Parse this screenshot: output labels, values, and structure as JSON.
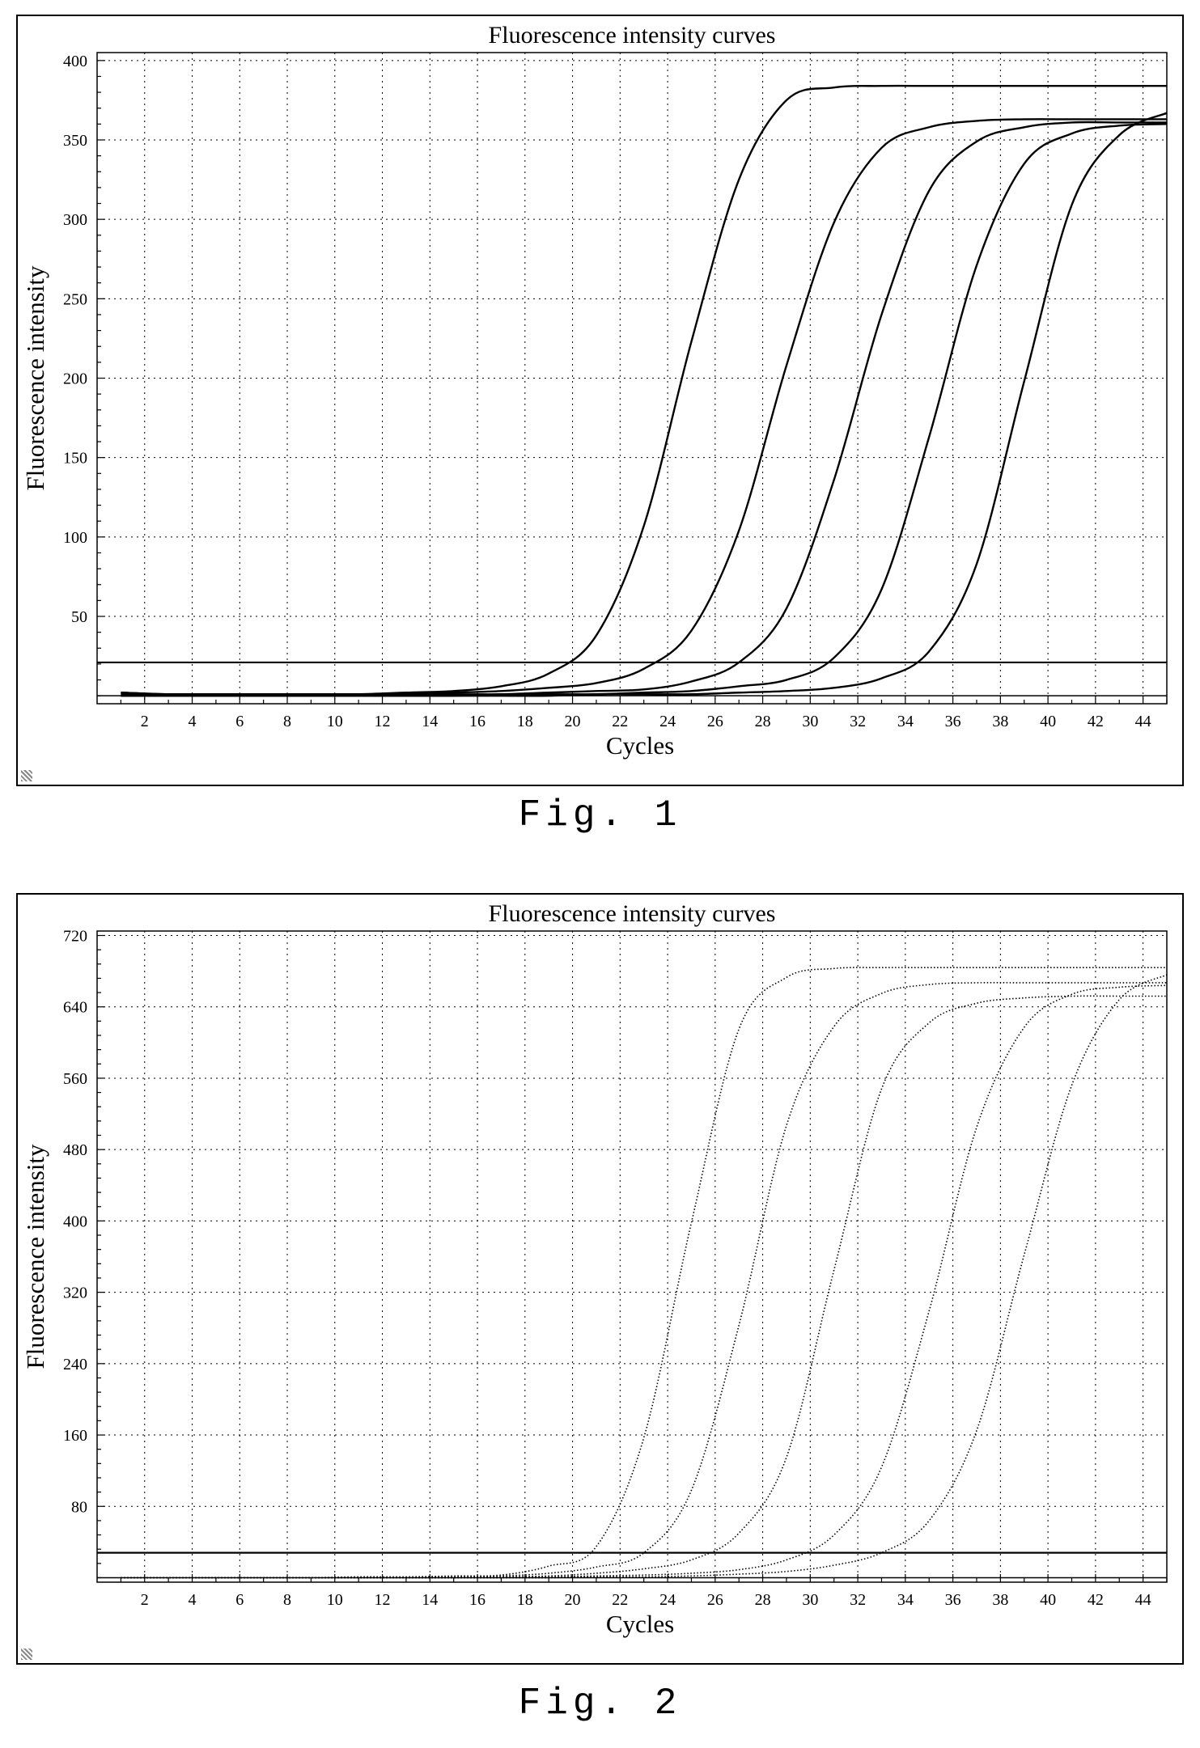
{
  "captions": {
    "fig1": "Fig. 1",
    "fig2": "Fig. 2"
  },
  "chart_data": [
    {
      "type": "line",
      "title": "Fluorescence intensity curves",
      "xlabel": "Cycles",
      "ylabel": "Fluorescence intensity",
      "xlim": [
        0,
        45
      ],
      "ylim": [
        -5,
        405
      ],
      "xticks": [
        2,
        4,
        6,
        8,
        10,
        12,
        14,
        16,
        18,
        20,
        22,
        24,
        26,
        28,
        30,
        32,
        34,
        36,
        38,
        40,
        42,
        44
      ],
      "yticks": [
        50,
        100,
        150,
        200,
        250,
        300,
        350,
        400
      ],
      "grid": true,
      "line_style": "solid",
      "threshold": 21,
      "x": [
        1,
        3,
        5,
        7,
        9,
        11,
        13,
        15,
        17,
        19,
        21,
        23,
        25,
        27,
        29,
        31,
        33,
        35,
        37,
        39,
        41,
        43,
        45
      ],
      "series": [
        {
          "values": [
            2,
            1,
            1,
            1,
            1,
            1,
            2,
            3,
            6,
            14,
            38,
            107,
            223,
            325,
            375,
            383,
            384,
            384,
            384,
            384,
            384,
            384,
            384
          ]
        },
        {
          "values": [
            2,
            1,
            1,
            1,
            1,
            1,
            1,
            2,
            3,
            5,
            8,
            17,
            41,
            104,
            208,
            298,
            345,
            358,
            362,
            363,
            363,
            363,
            363
          ]
        },
        {
          "values": [
            1,
            1,
            1,
            1,
            1,
            1,
            1,
            1,
            1,
            2,
            3,
            4,
            9,
            21,
            55,
            136,
            240,
            318,
            349,
            358,
            361,
            361,
            361
          ]
        },
        {
          "values": [
            0,
            0,
            0,
            0,
            0,
            0,
            0,
            0,
            1,
            1,
            1,
            2,
            3,
            6,
            10,
            24,
            67,
            163,
            271,
            335,
            354,
            359,
            360
          ]
        },
        {
          "values": [
            0,
            0,
            0,
            0,
            0,
            0,
            0,
            0,
            0,
            0,
            1,
            1,
            1,
            2,
            3,
            5,
            11,
            28,
            83,
            198,
            309,
            353,
            367
          ]
        }
      ]
    },
    {
      "type": "line",
      "title": "Fluorescence intensity curves",
      "xlabel": "Cycles",
      "ylabel": "Fluorescence intensity",
      "xlim": [
        0,
        45
      ],
      "ylim": [
        -5,
        725
      ],
      "xticks": [
        2,
        4,
        6,
        8,
        10,
        12,
        14,
        16,
        18,
        20,
        22,
        24,
        26,
        28,
        30,
        32,
        34,
        36,
        38,
        40,
        42,
        44
      ],
      "yticks": [
        80,
        160,
        240,
        320,
        400,
        480,
        560,
        640,
        720
      ],
      "grid": true,
      "line_style": "dotted",
      "threshold": 28,
      "x": [
        1,
        3,
        5,
        7,
        9,
        11,
        13,
        15,
        17,
        19,
        21,
        23,
        25,
        27,
        29,
        31,
        33,
        35,
        37,
        39,
        41,
        43,
        45
      ],
      "series": [
        {
          "values": [
            0,
            0,
            0,
            0,
            0,
            1,
            1,
            2,
            3,
            13,
            35,
            157,
            398,
            615,
            673,
            683,
            684,
            684,
            684,
            684,
            684,
            684,
            684
          ]
        },
        {
          "values": [
            0,
            0,
            0,
            0,
            0,
            0,
            0,
            1,
            2,
            5,
            12,
            28,
            98,
            283,
            507,
            618,
            655,
            665,
            667,
            667,
            667,
            667,
            667
          ]
        },
        {
          "values": [
            0,
            0,
            0,
            0,
            0,
            0,
            0,
            0,
            1,
            2,
            5,
            10,
            20,
            50,
            135,
            345,
            548,
            622,
            644,
            650,
            652,
            652,
            652
          ]
        },
        {
          "values": [
            0,
            0,
            0,
            0,
            0,
            0,
            0,
            0,
            0,
            1,
            2,
            3,
            5,
            9,
            20,
            48,
            124,
            299,
            505,
            617,
            654,
            662,
            664
          ]
        },
        {
          "values": [
            0,
            0,
            0,
            0,
            0,
            0,
            0,
            0,
            0,
            0,
            1,
            1,
            2,
            4,
            7,
            14,
            28,
            64,
            165,
            362,
            552,
            648,
            676
          ]
        }
      ]
    }
  ]
}
